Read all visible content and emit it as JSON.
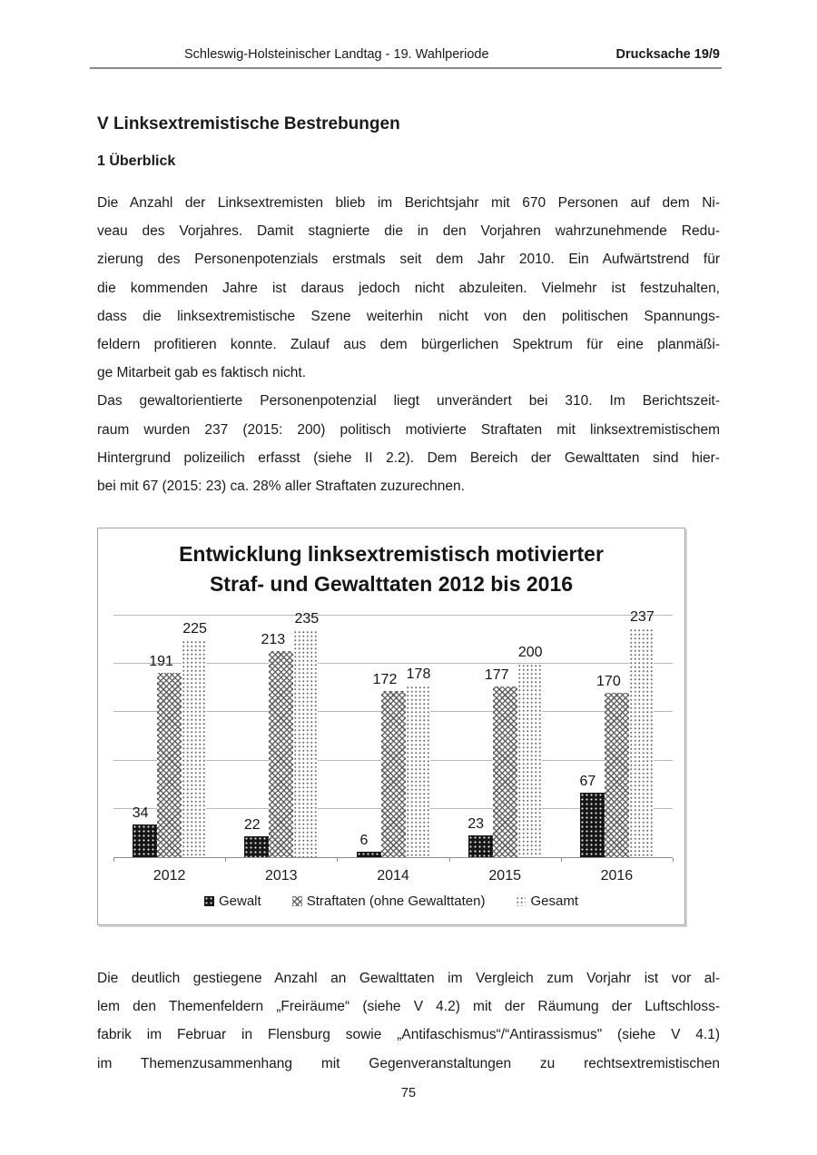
{
  "header": {
    "left": "Schleswig-Holsteinischer Landtag - 19. Wahlperiode",
    "right": "Drucksache 19/9"
  },
  "title": "V Linksextremistische Bestrebungen",
  "section_heading": "1 Überblick",
  "body": {
    "paragraphs": [
      {
        "justify_last": false,
        "lines": [
          "Die Anzahl der Linksextremisten blieb im Berichtsjahr mit 670 Personen auf dem Ni-",
          "veau des Vorjahres. Damit stagnierte die in den Vorjahren wahrzunehmende Redu-",
          "zierung des Personenpotenzials erstmals seit dem Jahr 2010. Ein Aufwärtstrend für",
          "die kommenden Jahre ist daraus jedoch nicht abzuleiten. Vielmehr ist festzuhalten,",
          "dass die linksextremistische Szene weiterhin nicht von den politischen Spannungs-",
          "feldern profitieren konnte. Zulauf aus dem bürgerlichen Spektrum für eine planmäßi-",
          "ge Mitarbeit gab es faktisch nicht."
        ]
      },
      {
        "justify_last": false,
        "lines": [
          "Das gewaltorientierte Personenpotenzial liegt unverändert bei 310. Im Berichtszeit-",
          "raum wurden 237 (2015: 200) politisch motivierte Straftaten mit linksextremistischem",
          "Hintergrund polizeilich erfasst (siehe II 2.2). Dem Bereich der Gewalttaten sind hier-",
          "bei mit 67 (2015: 23) ca. 28% aller Straftaten zuzurechnen."
        ]
      }
    ],
    "paragraphs_after": [
      {
        "justify_last": true,
        "lines": [
          "Die deutlich gestiegene Anzahl an Gewalttaten im Vergleich zum Vorjahr ist vor al-",
          "lem den Themenfeldern „Freiräume“ (siehe V 4.2) mit der Räumung der Luftschloss-",
          "fabrik im Februar in Flensburg sowie „Antifaschismus“/“Antirassismus\" (siehe V 4.1)",
          "im Themenzusammenhang mit Gegenveranstaltungen zu rechtsextremistischen"
        ]
      }
    ]
  },
  "chart_data": {
    "type": "bar",
    "title_lines": [
      "Entwicklung linksextremistisch motivierter",
      "Straf- und Gewalttaten 2012 bis 2016"
    ],
    "categories": [
      "2012",
      "2013",
      "2014",
      "2015",
      "2016"
    ],
    "series": [
      {
        "name": "Gewalt",
        "pattern": "black-dots",
        "values": [
          34,
          22,
          6,
          23,
          67
        ]
      },
      {
        "name": "Straftaten (ohne Gewalttaten)",
        "pattern": "gray-crosshatch",
        "values": [
          191,
          213,
          172,
          177,
          170
        ]
      },
      {
        "name": "Gesamt",
        "pattern": "light-dots",
        "values": [
          225,
          235,
          178,
          200,
          237
        ]
      }
    ],
    "ylim": [
      0,
      250
    ],
    "gridline_step": 50,
    "grid": true,
    "y_axis_labels_visible": false,
    "data_labels": true,
    "legend_position": "bottom"
  },
  "page_number": "75",
  "colors": {
    "text": "#1a1a1a",
    "grid": "#b8b8b8",
    "axis": "#8c8c8c",
    "chart_border": "#a6a6a6",
    "bar_dark": "#151515",
    "bar_pattern_gray": "#525252"
  }
}
